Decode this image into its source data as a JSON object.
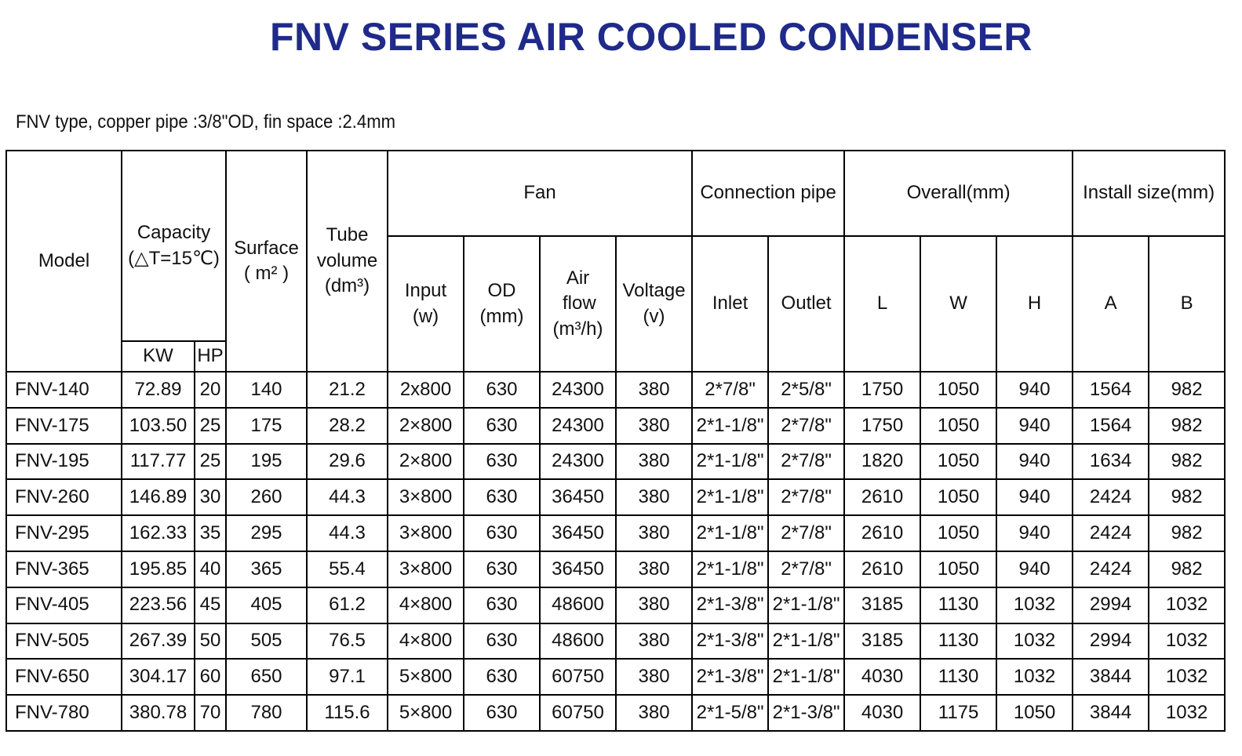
{
  "title": "FNV SERIES AIR COOLED CONDENSER",
  "subtitle": "FNV type, copper pipe :3/8\"OD,  fin space :2.4mm",
  "table": {
    "headers": {
      "model": "Model",
      "capacity": {
        "label": "Capacity",
        "unit": "(△T=15℃)"
      },
      "capacity_kw": "KW",
      "capacity_hp": "HP",
      "surface": {
        "label": "Surface",
        "unit": "( m² )"
      },
      "tube_volume": {
        "label": "Tube volume",
        "unit": "(dm³)"
      },
      "fan": "Fan",
      "fan_input": {
        "label": "Input",
        "unit": "(w)"
      },
      "fan_od": {
        "label": "OD",
        "unit": "(mm)"
      },
      "air_flow": {
        "label": "Air flow",
        "unit": "(m³/h)"
      },
      "voltage": {
        "label": "Voltage",
        "unit": "(v)"
      },
      "connection_pipe": "Connection pipe",
      "inlet": "Inlet",
      "outlet": "Outlet",
      "overall": "Overall(mm)",
      "overall_l": "L",
      "overall_w": "W",
      "overall_h": "H",
      "install_size": "Install size(mm)",
      "install_a": "A",
      "install_b": "B"
    },
    "rows": [
      [
        "FNV-140",
        "72.89",
        "20",
        "140",
        "21.2",
        "2x800",
        "630",
        "24300",
        "380",
        "2*7/8\"",
        "2*5/8\"",
        "1750",
        "1050",
        "940",
        "1564",
        "982"
      ],
      [
        "FNV-175",
        "103.50",
        "25",
        "175",
        "28.2",
        "2×800",
        "630",
        "24300",
        "380",
        "2*1-1/8\"",
        "2*7/8\"",
        "1750",
        "1050",
        "940",
        "1564",
        "982"
      ],
      [
        "FNV-195",
        "117.77",
        "25",
        "195",
        "29.6",
        "2×800",
        "630",
        "24300",
        "380",
        "2*1-1/8\"",
        "2*7/8\"",
        "1820",
        "1050",
        "940",
        "1634",
        "982"
      ],
      [
        "FNV-260",
        "146.89",
        "30",
        "260",
        "44.3",
        "3×800",
        "630",
        "36450",
        "380",
        "2*1-1/8\"",
        "2*7/8\"",
        "2610",
        "1050",
        "940",
        "2424",
        "982"
      ],
      [
        "FNV-295",
        "162.33",
        "35",
        "295",
        "44.3",
        "3×800",
        "630",
        "36450",
        "380",
        "2*1-1/8\"",
        "2*7/8\"",
        "2610",
        "1050",
        "940",
        "2424",
        "982"
      ],
      [
        "FNV-365",
        "195.85",
        "40",
        "365",
        "55.4",
        "3×800",
        "630",
        "36450",
        "380",
        "2*1-1/8\"",
        "2*7/8\"",
        "2610",
        "1050",
        "940",
        "2424",
        "982"
      ],
      [
        "FNV-405",
        "223.56",
        "45",
        "405",
        "61.2",
        "4×800",
        "630",
        "48600",
        "380",
        "2*1-3/8\"",
        "2*1-1/8\"",
        "3185",
        "1130",
        "1032",
        "2994",
        "1032"
      ],
      [
        "FNV-505",
        "267.39",
        "50",
        "505",
        "76.5",
        "4×800",
        "630",
        "48600",
        "380",
        "2*1-3/8\"",
        "2*1-1/8\"",
        "3185",
        "1130",
        "1032",
        "2994",
        "1032"
      ],
      [
        "FNV-650",
        "304.17",
        "60",
        "650",
        "97.1",
        "5×800",
        "630",
        "60750",
        "380",
        "2*1-3/8\"",
        "2*1-1/8\"",
        "4030",
        "1130",
        "1032",
        "3844",
        "1032"
      ],
      [
        "FNV-780",
        "380.78",
        "70",
        "780",
        "115.6",
        "5×800",
        "630",
        "60750",
        "380",
        "2*1-5/8\"",
        "2*1-3/8\"",
        "4030",
        "1175",
        "1050",
        "3844",
        "1032"
      ]
    ]
  }
}
